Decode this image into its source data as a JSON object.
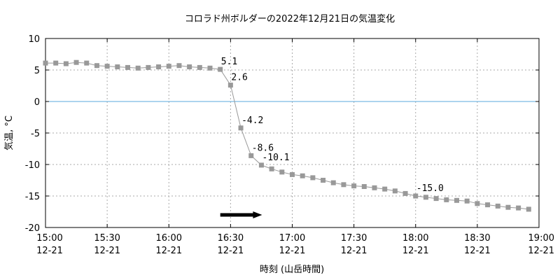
{
  "chart_data": {
    "type": "line",
    "title": "コロラド州ボルダーの2022年12月21日の気温変化",
    "xlabel": "時刻 (山岳時間)",
    "ylabel": "気温, °C",
    "ylim": [
      -20,
      10
    ],
    "yticks": [
      10,
      5,
      0,
      -5,
      -10,
      -15,
      -20
    ],
    "xlim": [
      "15:00",
      "19:00"
    ],
    "x_tick_labels": [
      {
        "time": "15:00",
        "date": "12-21"
      },
      {
        "time": "15:30",
        "date": "12-21"
      },
      {
        "time": "16:00",
        "date": "12-21"
      },
      {
        "time": "16:30",
        "date": "12-21"
      },
      {
        "time": "17:00",
        "date": "12-21"
      },
      {
        "time": "17:30",
        "date": "12-21"
      },
      {
        "time": "18:00",
        "date": "12-21"
      },
      {
        "time": "18:30",
        "date": "12-21"
      },
      {
        "time": "19:00",
        "date": "12-21"
      }
    ],
    "grid": true,
    "reference_line": {
      "y": 0,
      "color": "#5aaadc"
    },
    "series_color": "#999999",
    "arrow_color": "#000000",
    "arrow": {
      "from": "16:25",
      "to": "16:45",
      "y": -18
    },
    "series": [
      {
        "x": [
          "15:00",
          "15:05",
          "15:10",
          "15:15",
          "15:20",
          "15:25",
          "15:30",
          "15:35",
          "15:40",
          "15:45",
          "15:50",
          "15:55",
          "16:00",
          "16:05",
          "16:10",
          "16:15",
          "16:20",
          "16:25",
          "16:30",
          "16:35",
          "16:40",
          "16:45",
          "16:50",
          "16:55",
          "17:00",
          "17:05",
          "17:10",
          "17:15",
          "17:20",
          "17:25",
          "17:30",
          "17:35",
          "17:40",
          "17:45",
          "17:50",
          "17:55",
          "18:00",
          "18:05",
          "18:10",
          "18:15",
          "18:20",
          "18:25",
          "18:30",
          "18:35",
          "18:40",
          "18:45",
          "18:50",
          "18:55"
        ],
        "y": [
          6.1,
          6.1,
          6.0,
          6.2,
          6.1,
          5.7,
          5.6,
          5.5,
          5.4,
          5.3,
          5.4,
          5.5,
          5.6,
          5.7,
          5.5,
          5.4,
          5.3,
          5.1,
          2.6,
          -4.2,
          -8.6,
          -10.1,
          -10.7,
          -11.2,
          -11.6,
          -11.8,
          -12.1,
          -12.5,
          -12.9,
          -13.2,
          -13.4,
          -13.5,
          -13.7,
          -13.9,
          -14.2,
          -14.6,
          -15.0,
          -15.2,
          -15.4,
          -15.6,
          -15.7,
          -15.8,
          -16.2,
          -16.4,
          -16.6,
          -16.8,
          -16.9,
          -17.1
        ]
      }
    ],
    "annotations": [
      {
        "x": "16:25",
        "y": 5.1,
        "label": "5.1"
      },
      {
        "x": "16:30",
        "y": 2.6,
        "label": "2.6"
      },
      {
        "x": "16:35",
        "y": -4.2,
        "label": "-4.2"
      },
      {
        "x": "16:40",
        "y": -8.6,
        "label": "-8.6"
      },
      {
        "x": "16:45",
        "y": -10.1,
        "label": "-10.1"
      },
      {
        "x": "18:00",
        "y": -15.0,
        "label": "-15.0"
      }
    ]
  }
}
